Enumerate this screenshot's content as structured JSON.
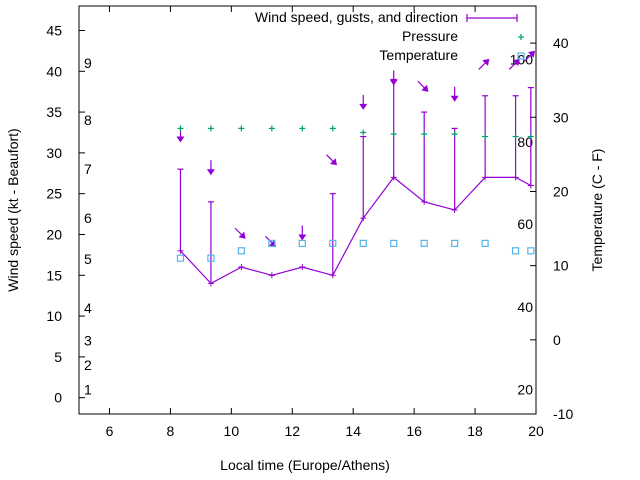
{
  "chart_data": {
    "type": "line",
    "xlabel": "Local time (Europe/Athens)",
    "ylabel_left": "Wind speed (kt - Beaufort)",
    "ylabel_right": "Temperature (C - F)",
    "xlim": [
      5,
      20
    ],
    "ylim_left": [
      -2,
      48
    ],
    "ylim_right": [
      -10,
      45
    ],
    "x_ticks": [
      6,
      8,
      10,
      12,
      14,
      16,
      18,
      20
    ],
    "y_left_ticks": [
      0,
      5,
      10,
      15,
      20,
      25,
      30,
      35,
      40,
      45
    ],
    "y_right_ticks": [
      -10,
      0,
      10,
      20,
      30,
      40
    ],
    "beaufort_labels": [
      {
        "label": "1",
        "kt": 1
      },
      {
        "label": "2",
        "kt": 4
      },
      {
        "label": "3",
        "kt": 7
      },
      {
        "label": "4",
        "kt": 11
      },
      {
        "label": "5",
        "kt": 17
      },
      {
        "label": "6",
        "kt": 22
      },
      {
        "label": "7",
        "kt": 28
      },
      {
        "label": "8",
        "kt": 34
      },
      {
        "label": "9",
        "kt": 41
      }
    ],
    "fahrenheit_labels": [
      {
        "label": "20",
        "c": -6.7
      },
      {
        "label": "40",
        "c": 4.4
      },
      {
        "label": "60",
        "c": 15.6
      },
      {
        "label": "80",
        "c": 26.7
      },
      {
        "label": "100",
        "c": 37.8
      }
    ],
    "legend": [
      "Wind speed, gusts, and direction",
      "Pressure",
      "Temperature"
    ],
    "legend_position": "top-right",
    "series": [
      {
        "name": "Wind speed, gusts, and direction",
        "x": [
          8.33,
          9.33,
          10.33,
          11.33,
          12.33,
          13.33,
          14.33,
          15.33,
          16.33,
          17.33,
          18.33,
          19.33,
          19.83
        ],
        "wind": [
          18,
          14,
          16,
          15,
          16,
          15,
          22,
          27,
          24,
          23,
          27,
          27,
          26
        ],
        "gust": [
          28,
          24,
          16,
          15,
          16,
          25,
          32,
          39,
          35,
          33,
          37,
          37,
          38
        ],
        "arrow_y": [
          32,
          28,
          20,
          19,
          20,
          29,
          36,
          39,
          38,
          37,
          41,
          41,
          42
        ],
        "direction": [
          "N",
          "N",
          "NW",
          "NW",
          "N",
          "NW",
          "N",
          "N",
          "NW",
          "N",
          "SW",
          "SW",
          "SW"
        ]
      },
      {
        "name": "Pressure",
        "x": [
          8.33,
          9.33,
          10.33,
          11.33,
          12.33,
          13.33,
          14.33,
          15.33,
          16.33,
          17.33,
          18.33,
          19.33,
          19.83
        ],
        "y_kt_scale": [
          33,
          33,
          33,
          33,
          33,
          33,
          32.5,
          32.3,
          32.3,
          32.3,
          32,
          32,
          32
        ]
      },
      {
        "name": "Temperature",
        "x": [
          8.33,
          9.33,
          10.33,
          11.33,
          12.33,
          13.33,
          14.33,
          15.33,
          16.33,
          17.33,
          18.33,
          19.33,
          19.83
        ],
        "y": [
          11,
          11,
          12,
          13,
          13,
          13,
          13,
          13,
          13,
          13,
          13,
          12,
          12
        ]
      }
    ],
    "colors": {
      "wind": "#9400d3",
      "pressure": "#009e73",
      "temperature": "#56b4e9",
      "axis": "#000000"
    },
    "grid": false
  }
}
